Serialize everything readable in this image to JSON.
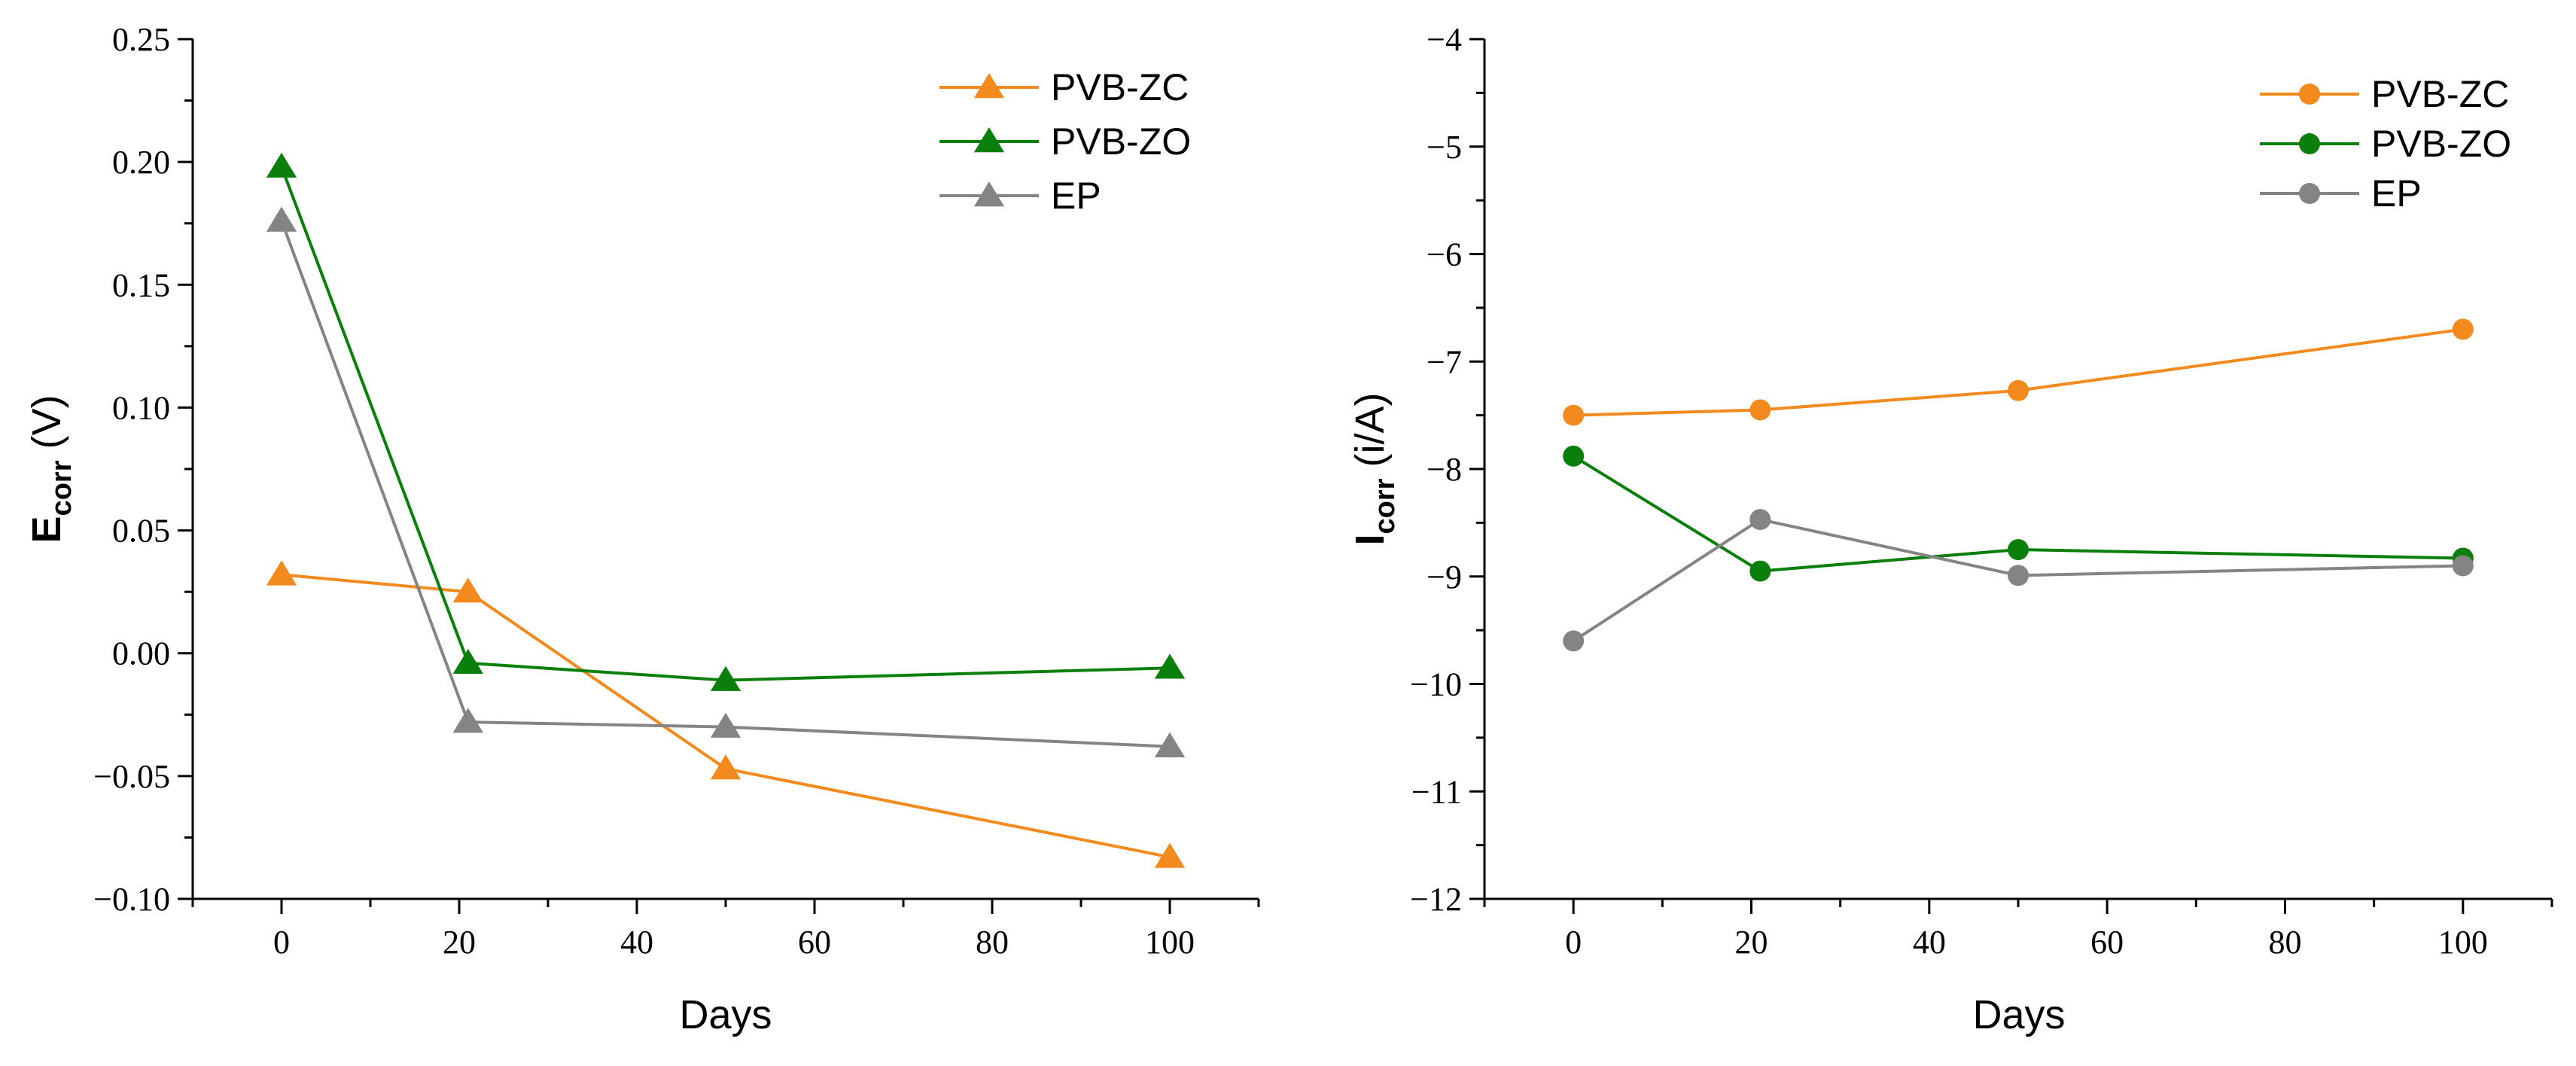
{
  "chart_data": [
    {
      "type": "line",
      "xlabel": "Days",
      "ylabel_main": "E",
      "ylabel_sub": "corr",
      "ylabel_unit": " (V)",
      "xlim": [
        -10,
        110
      ],
      "ylim": [
        -0.1,
        0.25
      ],
      "x_ticks": [
        0,
        20,
        40,
        60,
        80,
        100
      ],
      "x_tick_labels": [
        "0",
        "20",
        "40",
        "60",
        "80",
        "100"
      ],
      "y_ticks": [
        -0.1,
        -0.05,
        0.0,
        0.05,
        0.1,
        0.15,
        0.2,
        0.25
      ],
      "y_tick_labels": [
        "−0.10",
        "−0.05",
        "0.00",
        "0.05",
        "0.10",
        "0.15",
        "0.20",
        "0.25"
      ],
      "marker": "triangle",
      "legend_position": "top-right",
      "x": [
        0,
        21,
        50,
        100
      ],
      "series": [
        {
          "name": "PVB-ZC",
          "color": "#F28A1E",
          "values": [
            0.032,
            0.025,
            -0.047,
            -0.083
          ]
        },
        {
          "name": "PVB-ZO",
          "color": "#0B7F0B",
          "values": [
            0.198,
            -0.004,
            -0.011,
            -0.006
          ]
        },
        {
          "name": "EP",
          "color": "#848484",
          "values": [
            0.176,
            -0.028,
            -0.03,
            -0.038
          ]
        }
      ]
    },
    {
      "type": "line",
      "xlabel": "Days",
      "ylabel_main": "I",
      "ylabel_sub": "corr",
      "ylabel_unit": " (i/A)",
      "xlim": [
        -10,
        110
      ],
      "ylim": [
        -12,
        -4
      ],
      "x_ticks": [
        0,
        20,
        40,
        60,
        80,
        100
      ],
      "x_tick_labels": [
        "0",
        "20",
        "40",
        "60",
        "80",
        "100"
      ],
      "y_ticks": [
        -12,
        -11,
        -10,
        -9,
        -8,
        -7,
        -6,
        -5,
        -4
      ],
      "y_tick_labels": [
        "−12",
        "−11",
        "−10",
        "−9",
        "−8",
        "−7",
        "−6",
        "−5",
        "−4"
      ],
      "marker": "circle",
      "legend_position": "top-right",
      "x": [
        0,
        21,
        50,
        100
      ],
      "series": [
        {
          "name": "PVB-ZC",
          "color": "#F28A1E",
          "values": [
            -7.5,
            -7.45,
            -7.27,
            -6.7
          ]
        },
        {
          "name": "PVB-ZO",
          "color": "#0B7F0B",
          "values": [
            -7.88,
            -8.95,
            -8.75,
            -8.83
          ]
        },
        {
          "name": "EP",
          "color": "#848484",
          "values": [
            -9.6,
            -8.47,
            -8.99,
            -8.9
          ]
        }
      ]
    }
  ]
}
